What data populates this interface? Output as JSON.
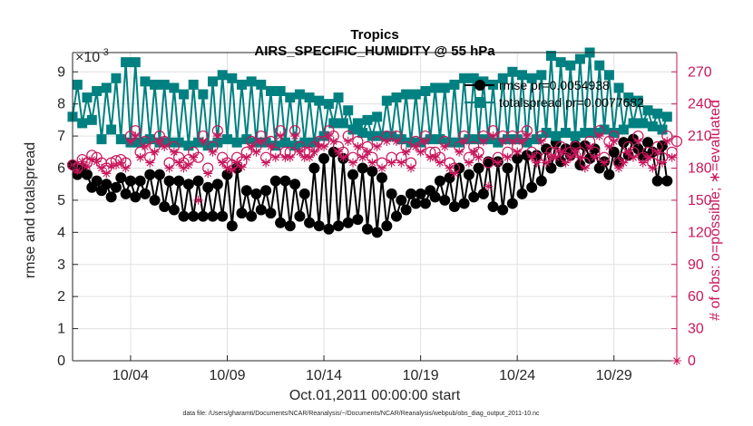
{
  "chart_data": {
    "type": "line",
    "title": "Tropics",
    "subtitle": "AIRS_SPECIFIC_HUMIDITY @ 55 hPa",
    "exponent_label": "×10",
    "exponent_power": "-3",
    "ylabel_left": "rmse and totalspread",
    "ylabel_right": "# of obs: o=possible; ∗=evaluated",
    "xlabel": "Oct.01,2011 00:00:00 start",
    "footnote": "data file: /Users/gharamti/Documents/NCAR/Reanalysis/~/Documents/NCAR/Reanalysis/webpub/obs_diag_output_2011-10.nc",
    "xlim": [
      1.0,
      32.25
    ],
    "ylim_left": [
      0,
      9.6
    ],
    "ylim_right": [
      0,
      288
    ],
    "x_ticks": [
      {
        "value": 4,
        "label": "10/04"
      },
      {
        "value": 9,
        "label": "10/09"
      },
      {
        "value": 14,
        "label": "10/14"
      },
      {
        "value": 19,
        "label": "10/19"
      },
      {
        "value": 24,
        "label": "10/24"
      },
      {
        "value": 29,
        "label": "10/29"
      }
    ],
    "y_ticks_left": [
      0,
      1,
      2,
      3,
      4,
      5,
      6,
      7,
      8,
      9
    ],
    "y_ticks_right": [
      0,
      30,
      60,
      90,
      120,
      150,
      180,
      210,
      240,
      270
    ],
    "legend": {
      "placement": "top-right",
      "entries": [
        {
          "label": "rmse pr=0.0054938",
          "color": "#000000",
          "marker": "circle"
        },
        {
          "label": "totalspread pr=0.0077682",
          "color": "#008080",
          "marker": "square"
        }
      ]
    },
    "series": [
      {
        "name": "rmse",
        "axis": "left",
        "color": "#000000",
        "x_start": 1.0,
        "x_step": 0.25,
        "values": [
          6.1,
          5.8,
          6.0,
          5.8,
          5.4,
          5.6,
          5.3,
          5.5,
          5.1,
          5.4,
          5.7,
          5.2,
          5.6,
          5.1,
          5.6,
          5.2,
          5.8,
          5.0,
          5.8,
          4.8,
          5.6,
          4.7,
          5.6,
          4.5,
          5.5,
          4.5,
          5.6,
          4.5,
          5.4,
          4.5,
          5.5,
          4.5,
          5.8,
          4.2,
          6.0,
          4.6,
          5.3,
          4.5,
          5.2,
          4.7,
          5.3,
          4.6,
          5.6,
          4.3,
          5.6,
          4.2,
          5.5,
          4.5,
          5.2,
          4.3,
          6.0,
          4.2,
          6.3,
          4.1,
          6.5,
          4.2,
          6.3,
          4.3,
          5.8,
          4.4,
          6.0,
          4.1,
          5.9,
          4.0,
          5.7,
          4.2,
          5.2,
          4.5,
          5.0,
          4.7,
          5.2,
          4.9,
          5.2,
          4.9,
          5.3,
          5.1,
          5.6,
          5.0,
          5.7,
          4.8,
          6.0,
          4.9,
          5.8,
          5.1,
          6.0,
          5.2,
          6.2,
          4.8,
          6.2,
          4.7,
          6.0,
          4.9,
          6.3,
          5.2,
          6.4,
          5.4,
          6.4,
          5.6,
          6.6,
          6.0,
          6.8,
          6.2,
          6.6,
          6.4,
          6.7,
          6.1,
          6.7,
          6.3,
          6.6,
          6.0,
          6.2,
          5.8,
          6.5,
          6.2,
          6.8,
          6.4,
          6.9,
          6.6,
          6.4,
          6.8,
          6.5,
          5.6,
          6.7,
          5.6
        ]
      },
      {
        "name": "totalspread",
        "axis": "left",
        "color": "#008080",
        "x_start": 1.0,
        "x_step": 0.25,
        "values": [
          7.6,
          8.6,
          7.4,
          8.2,
          7.5,
          8.4,
          6.9,
          8.5,
          7.2,
          8.8,
          6.9,
          9.3,
          6.8,
          9.3,
          6.8,
          8.7,
          6.9,
          8.6,
          6.8,
          8.6,
          6.8,
          8.5,
          6.8,
          8.3,
          6.7,
          8.6,
          6.8,
          8.3,
          6.7,
          8.7,
          6.8,
          8.9,
          6.9,
          8.8,
          6.8,
          8.6,
          6.9,
          8.7,
          6.8,
          8.6,
          6.8,
          8.4,
          6.7,
          8.4,
          6.8,
          8.2,
          6.7,
          8.3,
          6.8,
          8.2,
          6.8,
          8.1,
          7.0,
          8.0,
          7.4,
          8.2,
          7.4,
          7.8,
          7.2,
          7.4,
          7.1,
          7.5,
          7.0,
          7.6,
          7.0,
          8.1,
          7.0,
          8.2,
          6.9,
          8.3,
          6.8,
          8.3,
          6.8,
          8.4,
          6.9,
          8.5,
          6.9,
          8.5,
          6.8,
          8.6,
          6.8,
          8.8,
          6.9,
          8.8,
          6.9,
          8.7,
          6.9,
          8.6,
          6.8,
          8.8,
          6.9,
          9.0,
          6.9,
          8.9,
          6.8,
          8.8,
          6.9,
          8.9,
          7.1,
          9.5,
          7.0,
          9.3,
          7.1,
          9.2,
          7.0,
          9.4,
          7.1,
          9.6,
          7.1,
          9.2,
          7.2,
          8.9,
          7.1,
          8.5,
          7.2,
          8.2,
          7.4,
          8.1,
          7.4,
          7.8,
          7.3,
          7.7,
          7.2,
          7.6
        ]
      },
      {
        "name": "possible",
        "axis": "right",
        "color": "#c8175c",
        "x_start": 1.0,
        "x_step": 0.25,
        "values": [
          183,
          180,
          188,
          185,
          192,
          190,
          185,
          180,
          185,
          187,
          188,
          185,
          210,
          215,
          195,
          205,
          190,
          200,
          210,
          205,
          185,
          200,
          190,
          185,
          188,
          195,
          190,
          210,
          180,
          200,
          215,
          190,
          185,
          183,
          190,
          186,
          195,
          205,
          200,
          210,
          190,
          205,
          195,
          215,
          195,
          195,
          215,
          200,
          195,
          195,
          200,
          205,
          205,
          215,
          210,
          200,
          195,
          210,
          190,
          205,
          195,
          200,
          190,
          205,
          185,
          210,
          190,
          210,
          190,
          200,
          185,
          205,
          200,
          210,
          195,
          195,
          190,
          205,
          185,
          180,
          200,
          210,
          190,
          200,
          195,
          210,
          185,
          215,
          190,
          210,
          195,
          210,
          200,
          210,
          215,
          195,
          190,
          210,
          190,
          195,
          195,
          200,
          190,
          195,
          200,
          195,
          185,
          205,
          195,
          215,
          190,
          205,
          210,
          185,
          190,
          200,
          195,
          210,
          190,
          195,
          185,
          200,
          190,
          210,
          195,
          205
        ]
      },
      {
        "name": "evaluated",
        "axis": "right",
        "color": "#c8175c",
        "x_start": 1.0,
        "x_step": 0.25,
        "values": [
          183,
          178,
          186,
          182,
          188,
          186,
          180,
          175,
          182,
          183,
          185,
          180,
          205,
          210,
          190,
          200,
          185,
          195,
          205,
          200,
          180,
          195,
          185,
          180,
          183,
          190,
          150,
          205,
          175,
          195,
          210,
          185,
          180,
          178,
          185,
          181,
          190,
          200,
          195,
          205,
          185,
          200,
          190,
          210,
          190,
          190,
          210,
          195,
          190,
          190,
          195,
          200,
          200,
          210,
          205,
          195,
          190,
          205,
          185,
          200,
          190,
          195,
          185,
          200,
          180,
          205,
          185,
          205,
          185,
          195,
          180,
          200,
          195,
          205,
          190,
          190,
          185,
          200,
          180,
          175,
          195,
          205,
          185,
          195,
          190,
          205,
          163,
          210,
          185,
          205,
          190,
          205,
          195,
          205,
          210,
          190,
          185,
          205,
          185,
          190,
          190,
          195,
          185,
          190,
          195,
          190,
          180,
          200,
          190,
          210,
          185,
          200,
          205,
          180,
          185,
          195,
          190,
          205,
          185,
          190,
          180,
          195,
          185,
          205,
          190,
          0
        ]
      }
    ]
  }
}
